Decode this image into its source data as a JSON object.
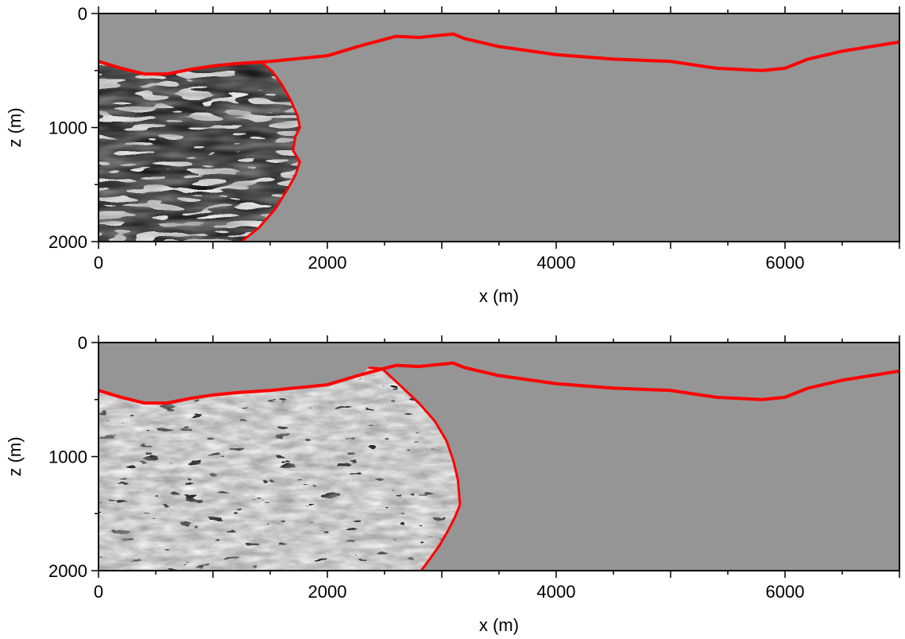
{
  "colors": {
    "background_medium": "#959595",
    "front_line": "#ff0000",
    "axis": "#000000",
    "wavefield_dark": "#000000",
    "wavefield_light": "#ffffff"
  },
  "chart_data": [
    {
      "type": "heatmap",
      "title": "",
      "xlabel": "x (m)",
      "ylabel": "z (m)",
      "xlim": [
        0,
        7000
      ],
      "ylim": [
        2000,
        0
      ],
      "x_ticks": [
        0,
        2000,
        4000,
        6000
      ],
      "y_ticks": [
        0,
        1000,
        2000
      ],
      "x_tick_labels": [
        "0",
        "2000",
        "4000",
        "6000"
      ],
      "y_tick_labels": [
        "0",
        "1000",
        "2000"
      ],
      "surface_topography": {
        "x": [
          0,
          200,
          400,
          600,
          800,
          1000,
          1200,
          1500,
          2000,
          2300,
          2600,
          2800,
          3100,
          3200,
          3500,
          4000,
          4500,
          5000,
          5400,
          5800,
          6000,
          6200,
          6500,
          7000
        ],
        "z": [
          420,
          480,
          530,
          530,
          490,
          460,
          440,
          420,
          370,
          280,
          200,
          210,
          180,
          220,
          290,
          360,
          400,
          420,
          480,
          500,
          480,
          400,
          330,
          250
        ]
      },
      "wavefront": {
        "x": [
          1430,
          1520,
          1600,
          1680,
          1740,
          1760,
          1720,
          1700,
          1760,
          1720,
          1640,
          1540,
          1400,
          1250
        ],
        "z": [
          430,
          510,
          620,
          760,
          900,
          1000,
          1080,
          1200,
          1300,
          1420,
          1560,
          1720,
          1880,
          2000
        ]
      }
    },
    {
      "type": "heatmap",
      "title": "",
      "xlabel": "x (m)",
      "ylabel": "z (m)",
      "xlim": [
        0,
        7000
      ],
      "ylim": [
        2000,
        0
      ],
      "x_ticks": [
        0,
        2000,
        4000,
        6000
      ],
      "y_ticks": [
        0,
        1000,
        2000
      ],
      "x_tick_labels": [
        "0",
        "2000",
        "4000",
        "6000"
      ],
      "y_tick_labels": [
        "0",
        "1000",
        "2000"
      ],
      "surface_topography": {
        "x": [
          0,
          200,
          400,
          600,
          800,
          1000,
          1200,
          1500,
          2000,
          2300,
          2600,
          2800,
          3100,
          3200,
          3500,
          4000,
          4500,
          5000,
          5400,
          5800,
          6000,
          6200,
          6500,
          7000
        ],
        "z": [
          420,
          480,
          530,
          530,
          490,
          460,
          440,
          420,
          370,
          280,
          200,
          210,
          180,
          220,
          290,
          360,
          400,
          420,
          480,
          500,
          480,
          400,
          330,
          250
        ]
      },
      "wavefront": {
        "x": [
          2360,
          2480,
          2640,
          2800,
          2940,
          3040,
          3100,
          3140,
          3160,
          3120,
          3060,
          2980,
          2880,
          2820
        ],
        "z": [
          220,
          230,
          380,
          530,
          690,
          860,
          1030,
          1200,
          1420,
          1520,
          1640,
          1780,
          1920,
          2000
        ]
      }
    }
  ]
}
